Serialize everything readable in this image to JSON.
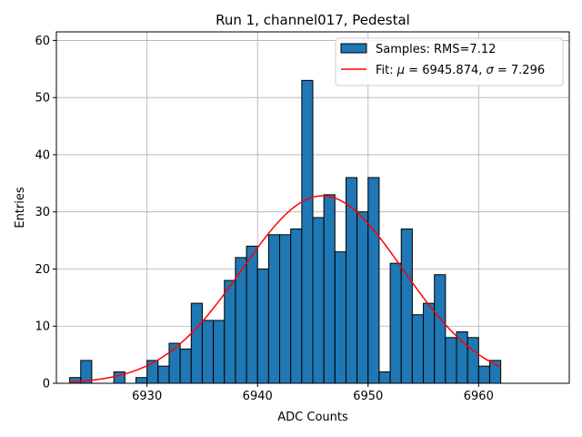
{
  "chart_data": {
    "type": "bar",
    "title": "Run 1, channel017, Pedestal",
    "xlabel": "ADC Counts",
    "ylabel": "Entries",
    "xlim": [
      6921.8,
      6968.2
    ],
    "ylim": [
      0,
      61.5
    ],
    "bin_width": 1,
    "grid": true,
    "legend_position": "top-right",
    "x_ticks": [
      6930,
      6940,
      6950,
      6960
    ],
    "y_ticks": [
      0,
      10,
      20,
      30,
      40,
      50,
      60
    ],
    "bar_color": "#1f77b4",
    "fit_color": "#ff0000",
    "histogram": {
      "name": "Samples: RMS=7.12",
      "bin_left_edges": [
        6923,
        6924,
        6925,
        6926,
        6927,
        6928,
        6929,
        6930,
        6931,
        6932,
        6933,
        6934,
        6935,
        6936,
        6937,
        6938,
        6939,
        6940,
        6941,
        6942,
        6943,
        6944,
        6945,
        6946,
        6947,
        6948,
        6949,
        6950,
        6951,
        6952,
        6953,
        6954,
        6955,
        6956,
        6957,
        6958,
        6959,
        6960,
        6961
      ],
      "counts": [
        1,
        4,
        0,
        0,
        2,
        0,
        1,
        4,
        3,
        7,
        6,
        14,
        11,
        11,
        18,
        22,
        24,
        20,
        26,
        26,
        27,
        53,
        29,
        33,
        23,
        36,
        30,
        36,
        2,
        21,
        27,
        12,
        14,
        19,
        8,
        9,
        8,
        3,
        4
      ]
    },
    "fit": {
      "name": "Fit: μ = 6945.874, σ = 7.296",
      "label_parts": [
        "Fit: ",
        "μ",
        " = 6945.874, ",
        "σ",
        " = 7.296"
      ],
      "type": "gaussian",
      "mu": 6945.874,
      "sigma": 7.296,
      "amplitude": 32.8,
      "x_range": [
        6923,
        6962
      ]
    }
  }
}
